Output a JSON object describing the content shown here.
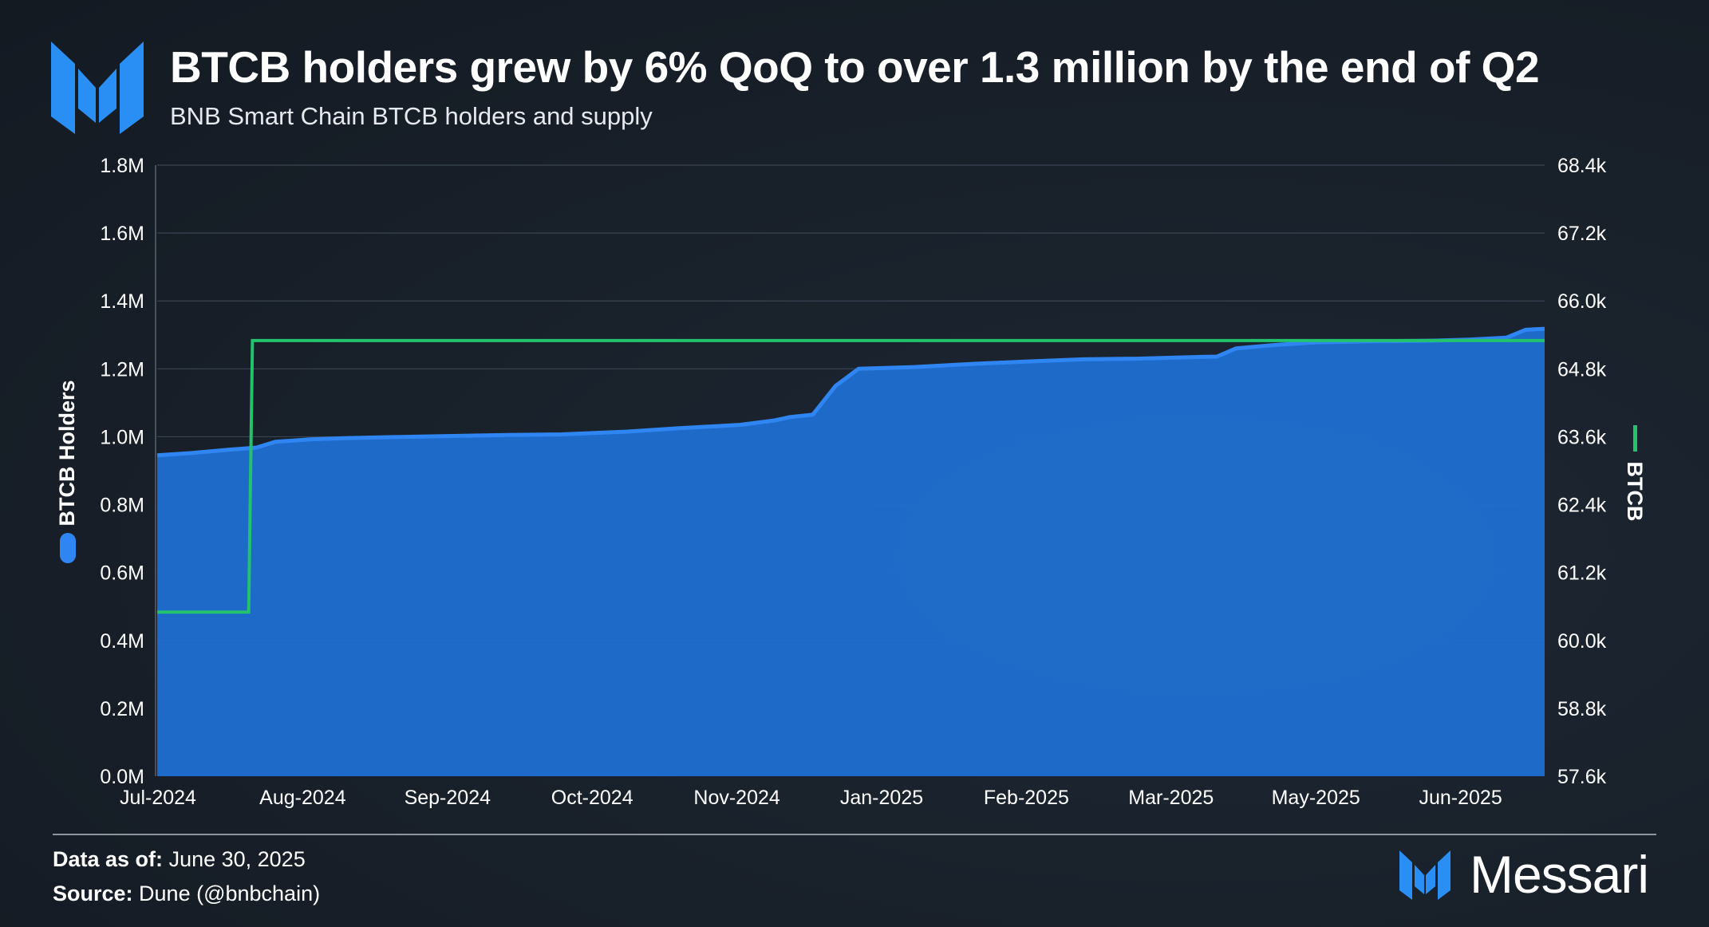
{
  "colors": {
    "background": "#19212b",
    "holders_area": "#1f6fd1",
    "holders_line": "#2f86f2",
    "supply_line": "#22c36c",
    "brand_blue": "#2a8ff5",
    "grid": "#3a4450"
  },
  "chart_data": {
    "type": "area",
    "title": "BTCB holders grew by 6% QoQ to over 1.3 million by the end of Q2",
    "subtitle": "BNB Smart Chain BTCB holders and supply",
    "x_tick_labels": [
      "Jul-2024",
      "Aug-2024",
      "Sep-2024",
      "Oct-2024",
      "Nov-2024",
      "Jan-2025",
      "Feb-2025",
      "Mar-2025",
      "May-2025",
      "Jun-2025"
    ],
    "x_range": [
      "2024-07-01",
      "2025-06-30"
    ],
    "y_left": {
      "label": "BTCB Holders",
      "ticks": [
        "0.0M",
        "0.2M",
        "0.4M",
        "0.6M",
        "0.8M",
        "1.0M",
        "1.2M",
        "1.4M",
        "1.6M",
        "1.8M"
      ],
      "range": [
        0,
        1800000
      ]
    },
    "y_right": {
      "label": "BTCB",
      "ticks": [
        "57.6k",
        "58.8k",
        "60.0k",
        "61.2k",
        "62.4k",
        "63.6k",
        "64.8k",
        "66.0k",
        "67.2k",
        "68.4k"
      ],
      "range": [
        57600,
        68400
      ]
    },
    "grid": true,
    "series": [
      {
        "name": "BTCB Holders",
        "type": "area",
        "axis": "left",
        "x": [
          "2024-07-01",
          "2024-07-10",
          "2024-07-20",
          "2024-07-27",
          "2024-08-01",
          "2024-08-10",
          "2024-08-20",
          "2024-09-01",
          "2024-09-15",
          "2024-10-01",
          "2024-10-15",
          "2024-11-01",
          "2024-11-15",
          "2024-12-01",
          "2024-12-10",
          "2024-12-14",
          "2024-12-20",
          "2024-12-26",
          "2024-12-29",
          "2025-01-01",
          "2025-01-15",
          "2025-02-01",
          "2025-02-15",
          "2025-03-01",
          "2025-03-15",
          "2025-04-01",
          "2025-04-05",
          "2025-04-10",
          "2025-04-20",
          "2025-05-01",
          "2025-05-15",
          "2025-06-01",
          "2025-06-10",
          "2025-06-20",
          "2025-06-25",
          "2025-06-30"
        ],
        "values": [
          945000,
          952000,
          962000,
          968000,
          985000,
          992000,
          996000,
          999000,
          1002000,
          1005000,
          1007000,
          1015000,
          1025000,
          1035000,
          1048000,
          1058000,
          1065000,
          1150000,
          1175000,
          1200000,
          1205000,
          1215000,
          1222000,
          1228000,
          1230000,
          1235000,
          1236000,
          1260000,
          1270000,
          1278000,
          1281000,
          1283000,
          1286000,
          1292000,
          1315000,
          1318000
        ]
      },
      {
        "name": "BTCB",
        "type": "line",
        "axis": "right",
        "x": [
          "2024-07-01",
          "2024-07-25",
          "2024-07-26",
          "2025-06-30"
        ],
        "values": [
          60500,
          60500,
          65300,
          65300
        ]
      }
    ]
  },
  "footer": {
    "data_as_of_label": "Data as of:",
    "data_as_of_value": "June 30, 2025",
    "source_label": "Source:",
    "source_value": "Dune (@bnbchain)"
  },
  "brand": {
    "name": "Messari",
    "logo_icon": "messari-m-logo-icon"
  }
}
